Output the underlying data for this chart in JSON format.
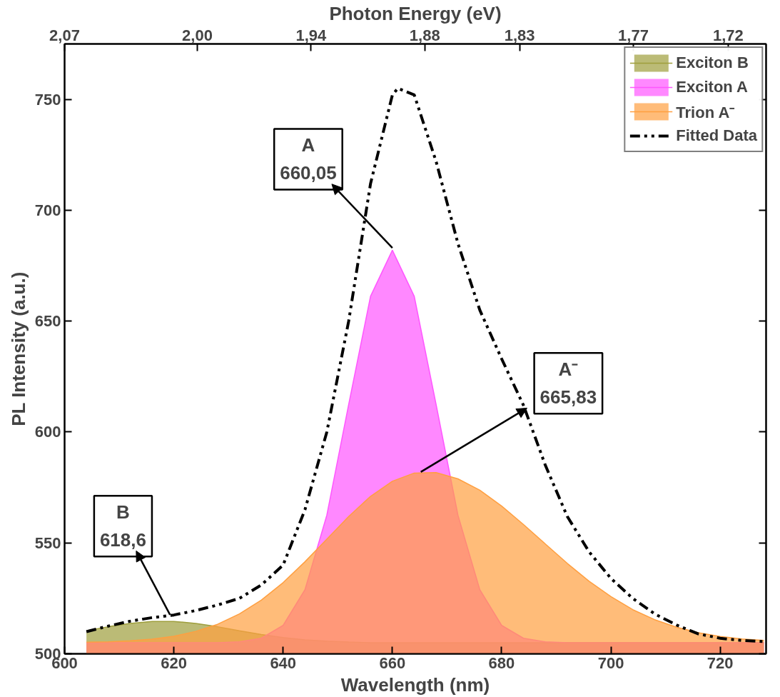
{
  "chart_data": {
    "type": "area",
    "xlabel": "Wavelength (nm)",
    "ylabel": "PL Intensity (a.u.)",
    "x2label": "Photon Energy (eV)",
    "x": [
      604,
      608,
      612,
      616,
      620,
      624,
      628,
      632,
      636,
      640,
      644,
      648,
      652,
      656,
      660,
      664,
      668,
      672,
      676,
      680,
      684,
      688,
      692,
      696,
      700,
      704,
      708,
      712,
      716,
      720,
      724,
      728
    ],
    "series": [
      {
        "name": "Exciton B",
        "color": "#9e9e3c",
        "values": [
          510.4,
          512.2,
          513.7,
          514.6,
          514.6,
          513.7,
          512.2,
          510.4,
          508.7,
          507.3,
          506.3,
          505.7,
          505.3,
          505,
          505,
          505,
          505,
          505,
          505,
          505,
          505,
          505,
          505,
          505,
          505,
          505,
          505,
          505,
          505,
          505,
          505,
          505
        ]
      },
      {
        "name": "Exciton A",
        "color": "#ff55ff",
        "values": [
          505,
          505,
          505,
          505,
          505,
          505,
          505,
          505.4,
          507,
          512.8,
          528.9,
          562.5,
          612.4,
          661.2,
          682,
          661.2,
          612.4,
          562.5,
          528.9,
          512.8,
          507,
          505.4,
          505,
          505,
          505,
          505,
          505,
          505,
          505,
          505,
          505,
          505
        ]
      },
      {
        "name": "Trion A⁻",
        "color": "#ff9f40",
        "values": [
          505.2,
          505.4,
          505.9,
          506.6,
          507.9,
          510.1,
          513.3,
          518,
          524.2,
          532.1,
          541.5,
          551.7,
          561.9,
          571,
          577.8,
          581.5,
          581.7,
          578.9,
          573.8,
          566.6,
          558.3,
          549.5,
          540.8,
          532.7,
          525.8,
          519.9,
          515.4,
          512,
          509.5,
          507.8,
          506.7,
          506
        ]
      },
      {
        "name": "Fitted Data",
        "type": "line",
        "color": "#000000",
        "line_style": "dashdot",
        "x": [
          604,
          608,
          612,
          616,
          620,
          624,
          628,
          632,
          636,
          640,
          644,
          648,
          652,
          656,
          660,
          661,
          664,
          668,
          672,
          676,
          680,
          684,
          688,
          692,
          696,
          700,
          704,
          708,
          712,
          716,
          720,
          724,
          728
        ],
        "values": [
          510,
          512.5,
          514.7,
          516.3,
          517.5,
          519.5,
          522,
          525,
          531,
          540,
          565,
          600,
          650,
          712,
          752,
          755,
          752,
          722,
          685,
          655,
          633,
          612,
          585,
          562,
          546,
          534,
          525,
          518,
          513,
          509,
          507,
          506,
          505.5
        ]
      }
    ],
    "xlim": [
      600,
      728.4
    ],
    "xticks": [
      600,
      620,
      640,
      660,
      680,
      700,
      720
    ],
    "x2lim": [
      2.07,
      1.7
    ],
    "x2ticks": [
      {
        "value": 2.07,
        "label": "2,07"
      },
      {
        "value": 2.0,
        "label": "2,00"
      },
      {
        "value": 1.94,
        "label": "1,94"
      },
      {
        "value": 1.88,
        "label": "1,88"
      },
      {
        "value": 1.83,
        "label": "1,83"
      },
      {
        "value": 1.77,
        "label": "1,77"
      },
      {
        "value": 1.72,
        "label": "1,72"
      }
    ],
    "ylim": [
      500,
      775
    ],
    "yticks": [
      500,
      550,
      600,
      650,
      700,
      750
    ],
    "annotations": [
      {
        "text": "A\n660,05",
        "x": 660,
        "y": 683
      },
      {
        "text": "A⁻\n665,83",
        "x": 665.2,
        "y": 582
      },
      {
        "text": "B\n618,6",
        "x": 619.3,
        "y": 517.6
      }
    ],
    "grid": false,
    "legend": "top right"
  }
}
